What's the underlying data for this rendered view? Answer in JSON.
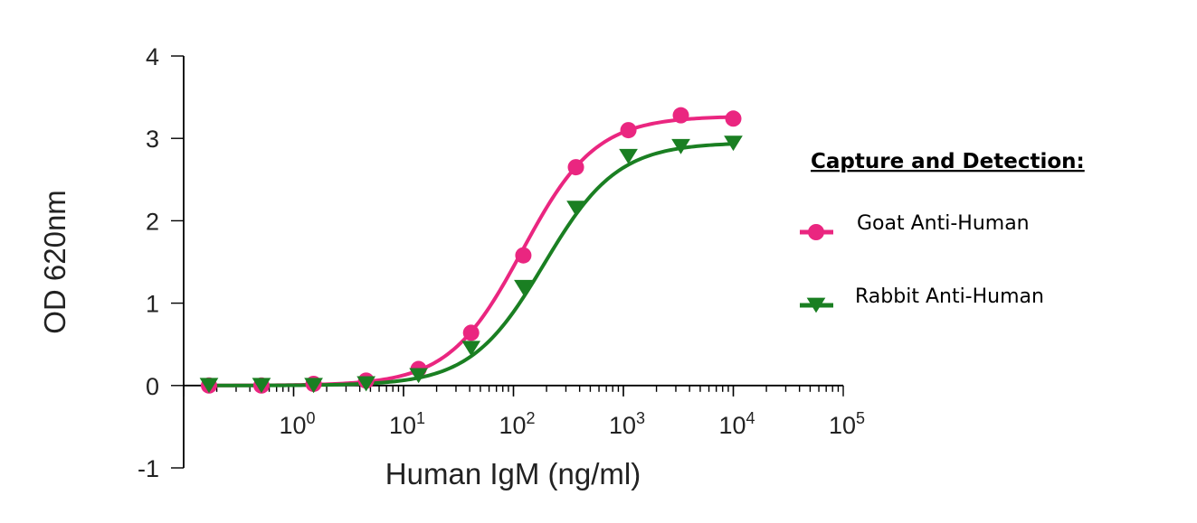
{
  "chart_data": {
    "type": "line",
    "xlabel": "Human IgM (ng/ml)",
    "ylabel": "OD 620nm",
    "x_scale": "log10",
    "xlim": [
      0.1,
      100000
    ],
    "ylim": [
      -1,
      4
    ],
    "y_ticks": [
      -1,
      0,
      1,
      2,
      3,
      4
    ],
    "y_tick_labels": [
      "-1",
      "0",
      "1",
      "2",
      "3",
      "4"
    ],
    "x_ticks": [
      1,
      10,
      100,
      1000,
      10000,
      100000
    ],
    "x_tick_labels": [
      {
        "base": "10",
        "exp": "0"
      },
      {
        "base": "10",
        "exp": "1"
      },
      {
        "base": "10",
        "exp": "2"
      },
      {
        "base": "10",
        "exp": "3"
      },
      {
        "base": "10",
        "exp": "4"
      },
      {
        "base": "10",
        "exp": "5"
      }
    ],
    "legend_title": "Capture and Detection:",
    "legend_position": "right",
    "grid": false,
    "series": [
      {
        "name": "Goat Anti-Human",
        "color": "#ea2680",
        "marker": "circle",
        "fit": {
          "bottom": 0.0,
          "top": 3.27,
          "ec50": 120,
          "hill": 1.3
        },
        "points": [
          {
            "x": 0.17,
            "y": 0.0
          },
          {
            "x": 0.51,
            "y": 0.0
          },
          {
            "x": 1.52,
            "y": 0.02
          },
          {
            "x": 4.57,
            "y": 0.06
          },
          {
            "x": 13.7,
            "y": 0.2
          },
          {
            "x": 41.2,
            "y": 0.64
          },
          {
            "x": 123,
            "y": 1.58
          },
          {
            "x": 370,
            "y": 2.65
          },
          {
            "x": 1111,
            "y": 3.1
          },
          {
            "x": 3333,
            "y": 3.28
          },
          {
            "x": 10000,
            "y": 3.24
          }
        ]
      },
      {
        "name": "Rabbit Anti-Human",
        "color": "#1a7f22",
        "marker": "triangle-down",
        "fit": {
          "bottom": 0.0,
          "top": 2.95,
          "ec50": 190,
          "hill": 1.3
        },
        "points": [
          {
            "x": 0.17,
            "y": 0.0
          },
          {
            "x": 0.51,
            "y": 0.0
          },
          {
            "x": 1.52,
            "y": 0.0
          },
          {
            "x": 4.57,
            "y": 0.02
          },
          {
            "x": 13.7,
            "y": 0.12
          },
          {
            "x": 41.2,
            "y": 0.45
          },
          {
            "x": 123,
            "y": 1.19
          },
          {
            "x": 370,
            "y": 2.15
          },
          {
            "x": 1111,
            "y": 2.78
          },
          {
            "x": 3333,
            "y": 2.9
          },
          {
            "x": 10000,
            "y": 2.94
          }
        ]
      }
    ]
  }
}
